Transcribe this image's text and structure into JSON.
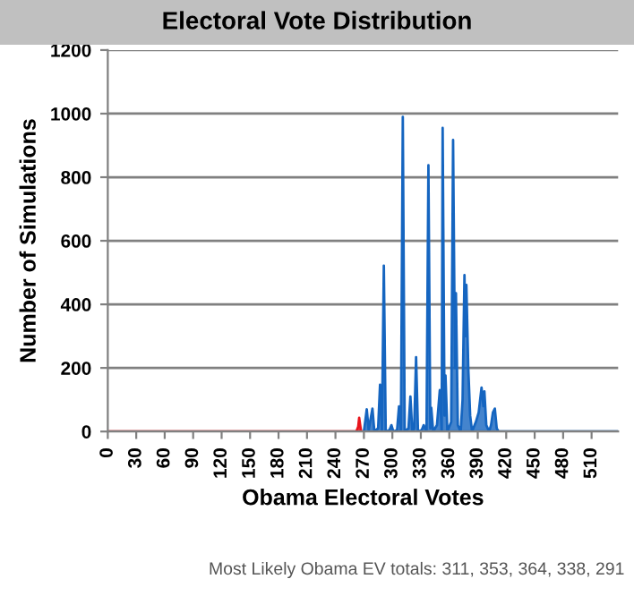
{
  "chart_data": {
    "type": "area",
    "title": "Electoral Vote Distribution",
    "xlabel": "Obama Electoral Votes",
    "ylabel": "Number of Simulations",
    "series": [
      {
        "color": "#e8141c",
        "x": [
          0,
          262,
          264,
          265,
          267,
          269
        ],
        "values": [
          0,
          0,
          15,
          43,
          0,
          0
        ]
      },
      {
        "color": "#1565c0",
        "x": [
          270,
          273,
          275,
          279,
          281,
          285,
          287,
          289,
          291,
          293,
          297,
          299,
          301,
          305,
          307,
          309,
          311,
          313,
          317,
          319,
          321,
          323,
          325,
          327,
          331,
          333,
          336,
          338,
          340,
          341,
          343,
          347,
          350,
          352,
          353,
          355,
          356,
          358,
          362,
          364,
          366,
          367,
          369,
          372,
          374,
          376,
          377,
          378,
          380,
          382,
          384,
          388,
          391,
          394,
          396,
          397,
          399,
          402,
          404,
          406,
          408,
          410,
          412,
          538
        ],
        "values": [
          0,
          70,
          5,
          72,
          0,
          10,
          147,
          0,
          522,
          0,
          5,
          20,
          0,
          5,
          79,
          0,
          990,
          0,
          10,
          110,
          0,
          10,
          234,
          0,
          5,
          20,
          0,
          838,
          10,
          75,
          0,
          20,
          130,
          0,
          955,
          50,
          176,
          0,
          30,
          917,
          200,
          435,
          20,
          0,
          100,
          492,
          300,
          461,
          200,
          50,
          0,
          30,
          60,
          138,
          80,
          126,
          20,
          0,
          20,
          60,
          72,
          10,
          0,
          0
        ]
      }
    ],
    "xlim": [
      0,
      538
    ],
    "xticks": [
      0,
      30,
      60,
      90,
      120,
      150,
      180,
      210,
      240,
      270,
      300,
      330,
      360,
      390,
      420,
      450,
      480,
      510
    ],
    "ylim": [
      0,
      1200
    ],
    "yticks": [
      0,
      200,
      400,
      600,
      800,
      1000,
      1200
    ],
    "grid": "y",
    "annotations": [
      "Most Likely Obama EV totals: 311, 353, 364, 338, 291"
    ]
  }
}
